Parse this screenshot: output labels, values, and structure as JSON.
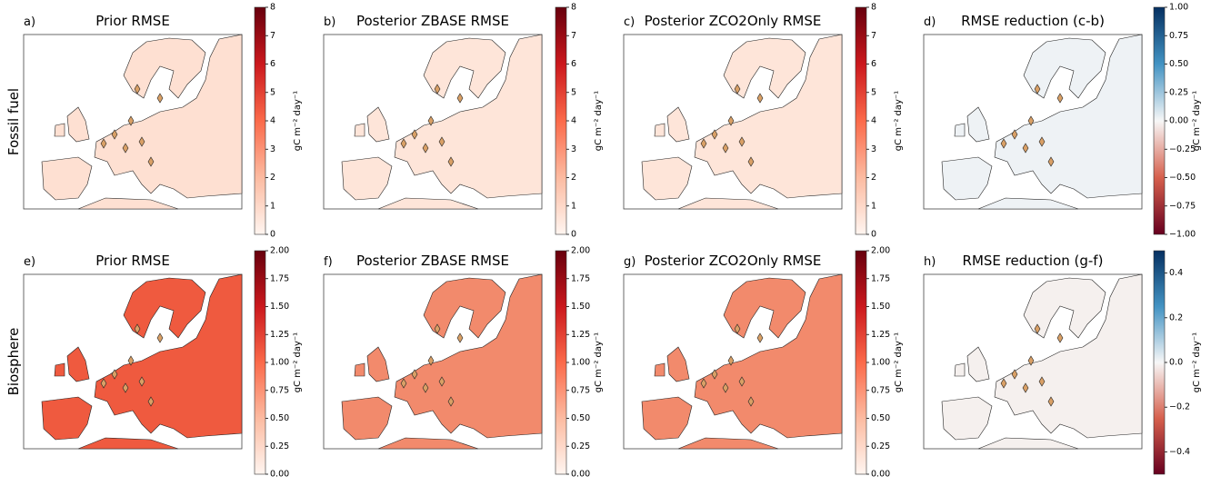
{
  "row_labels": [
    "Fossil fuel",
    "Biosphere"
  ],
  "panels": [
    {
      "label": "a)",
      "title": "Prior RMSE",
      "colorbar": {
        "label": "gC m⁻² day⁻¹",
        "colors": [
          "#fff5f0",
          "#fcbba1",
          "#fb6a4a",
          "#cb181d",
          "#67000d"
        ],
        "lim": [
          0,
          8
        ],
        "ticks": [
          0,
          1,
          2,
          3,
          4,
          5,
          6,
          7,
          8
        ]
      }
    },
    {
      "label": "b)",
      "title": "Posterior ZBASE RMSE",
      "colorbar": {
        "label": "gC m⁻² day⁻¹",
        "colors": [
          "#fff5f0",
          "#fcbba1",
          "#fb6a4a",
          "#cb181d",
          "#67000d"
        ],
        "lim": [
          0,
          8
        ],
        "ticks": [
          0,
          1,
          2,
          3,
          4,
          5,
          6,
          7,
          8
        ]
      }
    },
    {
      "label": "c)",
      "title": "Posterior ZCO2Only RMSE",
      "colorbar": {
        "label": "gC m⁻² day⁻¹",
        "colors": [
          "#fff5f0",
          "#fcbba1",
          "#fb6a4a",
          "#cb181d",
          "#67000d"
        ],
        "lim": [
          0,
          8
        ],
        "ticks": [
          0,
          1,
          2,
          3,
          4,
          5,
          6,
          7,
          8
        ]
      }
    },
    {
      "label": "d)",
      "title": "RMSE reduction (c-b)",
      "colorbar": {
        "label": "gC m⁻² day⁻¹",
        "colors": [
          "#67001f",
          "#d6604d",
          "#f7f7f7",
          "#4393c3",
          "#053061"
        ],
        "lim": [
          -1,
          1
        ],
        "ticks": [
          {
            "value": -1,
            "label": "−1.00"
          },
          {
            "value": -0.75,
            "label": "−0.75"
          },
          {
            "value": -0.5,
            "label": "−0.50"
          },
          {
            "value": -0.25,
            "label": "−0.25"
          },
          {
            "value": 0,
            "label": "0.00"
          },
          {
            "value": 0.25,
            "label": "0.25"
          },
          {
            "value": 0.5,
            "label": "0.50"
          },
          {
            "value": 0.75,
            "label": "0.75"
          },
          {
            "value": 1,
            "label": "1.00"
          }
        ]
      }
    },
    {
      "label": "e)",
      "title": "Prior RMSE",
      "colorbar": {
        "label": "gC m⁻² day⁻¹",
        "colors": [
          "#fff5f0",
          "#fcbba1",
          "#fb6a4a",
          "#cb181d",
          "#67000d"
        ],
        "lim": [
          0,
          2
        ],
        "ticks": [
          {
            "value": 0,
            "label": "0.00"
          },
          0.25,
          {
            "value": 0.5,
            "label": "0.50"
          },
          0.75,
          {
            "value": 1,
            "label": "1.00"
          },
          1.25,
          {
            "value": 1.5,
            "label": "1.50"
          },
          1.75,
          {
            "value": 2,
            "label": "2.00"
          }
        ]
      }
    },
    {
      "label": "f)",
      "title": "Posterior ZBASE RMSE",
      "colorbar": {
        "label": "gC m⁻² day⁻¹",
        "colors": [
          "#fff5f0",
          "#fcbba1",
          "#fb6a4a",
          "#cb181d",
          "#67000d"
        ],
        "lim": [
          0,
          2
        ],
        "ticks": [
          {
            "value": 0,
            "label": "0.00"
          },
          0.25,
          {
            "value": 0.5,
            "label": "0.50"
          },
          0.75,
          {
            "value": 1,
            "label": "1.00"
          },
          1.25,
          {
            "value": 1.5,
            "label": "1.50"
          },
          1.75,
          {
            "value": 2,
            "label": "2.00"
          }
        ]
      }
    },
    {
      "label": "g)",
      "title": "Posterior ZCO2Only RMSE",
      "colorbar": {
        "label": "gC m⁻² day⁻¹",
        "colors": [
          "#fff5f0",
          "#fcbba1",
          "#fb6a4a",
          "#cb181d",
          "#67000d"
        ],
        "lim": [
          0,
          2
        ],
        "ticks": [
          {
            "value": 0,
            "label": "0.00"
          },
          0.25,
          {
            "value": 0.5,
            "label": "0.50"
          },
          0.75,
          {
            "value": 1,
            "label": "1.00"
          },
          1.25,
          {
            "value": 1.5,
            "label": "1.50"
          },
          1.75,
          {
            "value": 2,
            "label": "2.00"
          }
        ]
      }
    },
    {
      "label": "h)",
      "title": "RMSE reduction (g-f)",
      "colorbar": {
        "label": "gC m⁻² day⁻¹",
        "colors": [
          "#67001f",
          "#d6604d",
          "#f7f7f7",
          "#4393c3",
          "#053061"
        ],
        "lim": [
          -0.5,
          0.5
        ],
        "ticks": [
          {
            "value": -0.4,
            "label": "−0.4"
          },
          {
            "value": -0.2,
            "label": "−0.2"
          },
          {
            "value": 0,
            "label": "0.0"
          },
          0.2,
          0.4
        ]
      }
    }
  ]
}
